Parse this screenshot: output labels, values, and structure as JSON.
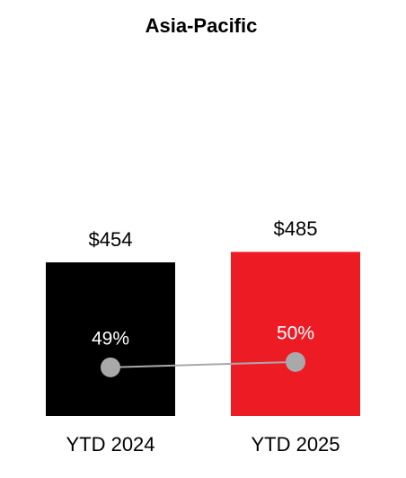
{
  "chart_data": {
    "type": "bar",
    "title": "Asia-Pacific",
    "categories": [
      "YTD 2024",
      "YTD 2025"
    ],
    "series": [
      {
        "type": "bar",
        "colors": [
          "#000000",
          "#ed1c24"
        ],
        "values": [
          454,
          485
        ],
        "value_labels": [
          "$454",
          "$485"
        ]
      },
      {
        "type": "line",
        "axis": "y2",
        "color": "#a9a9a9",
        "values": [
          49,
          50
        ],
        "value_labels": [
          "49%",
          "50%"
        ]
      }
    ],
    "ylim": [
      0,
      1070
    ],
    "y2lim": [
      40,
      107
    ]
  }
}
